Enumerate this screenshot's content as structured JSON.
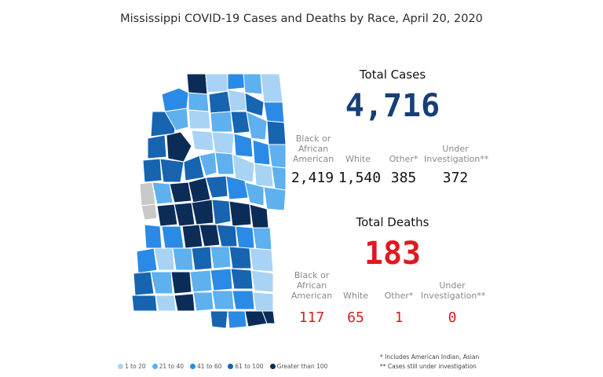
{
  "title": "Mississippi COVID-19 Cases and Deaths by Race, April 20, 2020",
  "cases": {
    "heading": "Total Cases",
    "total": "4,716",
    "categories": [
      {
        "label": "Black or African American",
        "value": "2,419"
      },
      {
        "label": "White",
        "value": "1,540"
      },
      {
        "label": "Other*",
        "value": "385"
      },
      {
        "label": "Under Investigation**",
        "value": "372"
      }
    ]
  },
  "deaths": {
    "heading": "Total Deaths",
    "total": "183",
    "categories": [
      {
        "label": "Black or African American",
        "value": "117"
      },
      {
        "label": "White",
        "value": "65"
      },
      {
        "label": "Other*",
        "value": "1"
      },
      {
        "label": "Under Investigation**",
        "value": "0"
      }
    ]
  },
  "legend": [
    {
      "label": "1 to 20",
      "color": "#a8d3f5"
    },
    {
      "label": "21 to 40",
      "color": "#5eb0ef"
    },
    {
      "label": "41 to 60",
      "color": "#2a8ae6"
    },
    {
      "label": "61 to 100",
      "color": "#1764b0"
    },
    {
      "label": "Greater than 100",
      "color": "#0c2c58"
    }
  ],
  "no_data_color": "#c8c8c8",
  "footnotes": {
    "other": "* Includes American Indian, Asian",
    "investigation": "** Cases still under investigation"
  }
}
